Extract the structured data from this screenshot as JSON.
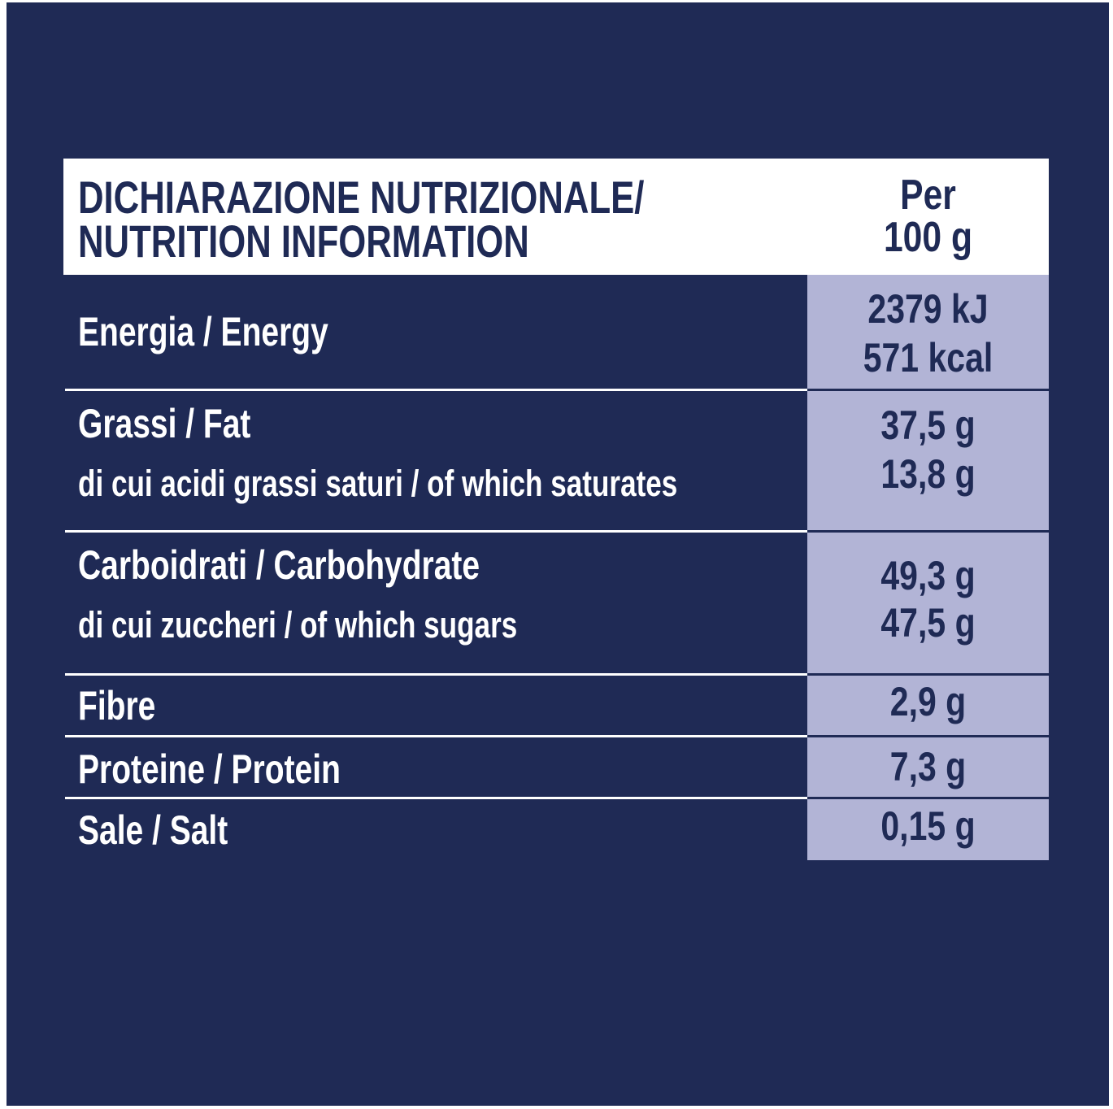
{
  "header": {
    "title": [
      "DICHIARAZIONE NUTRIZIONALE/",
      "NUTRITION INFORMATION"
    ],
    "per": [
      "Per",
      "100 g"
    ]
  },
  "rows": [
    {
      "labels": [
        "Energia / Energy"
      ],
      "values": [
        "2379 kJ",
        "571 kcal"
      ]
    },
    {
      "labels": [
        "Grassi / Fat",
        "di cui acidi grassi saturi / of which saturates"
      ],
      "values": [
        "37,5 g",
        "13,8 g"
      ]
    },
    {
      "labels": [
        "Carboidrati / Carbohydrate",
        "di cui zuccheri / of which sugars"
      ],
      "values": [
        "49,3 g",
        "47,5 g"
      ]
    },
    {
      "labels": [
        "Fibre"
      ],
      "values": [
        "2,9 g"
      ]
    },
    {
      "labels": [
        "Proteine / Protein"
      ],
      "values": [
        "7,3 g"
      ]
    },
    {
      "labels": [
        "Sale / Salt"
      ],
      "values": [
        "0,15 g"
      ]
    }
  ]
}
